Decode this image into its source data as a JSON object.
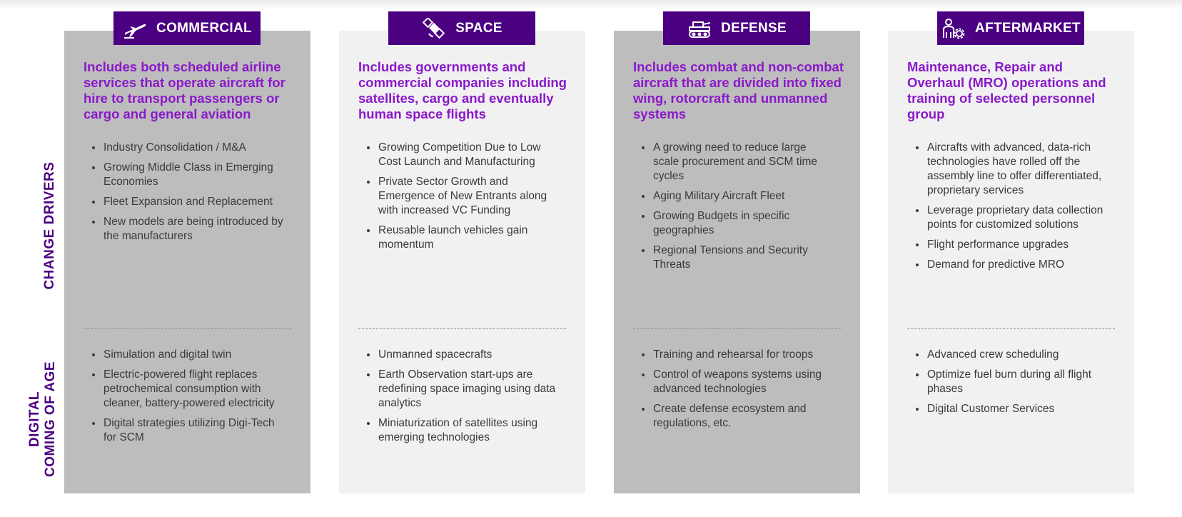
{
  "row_labels": {
    "change_drivers": "CHANGE DRIVERS",
    "digital_line1": "DIGITAL",
    "digital_line2": "COMING OF AGE"
  },
  "colors": {
    "accent": "#4b0082",
    "heading_text": "#8a19c9",
    "panel_dark": "#bdbdbd",
    "panel_light": "#f1f1f2"
  },
  "segments": [
    {
      "title": "COMMERCIAL",
      "icon": "airplane-icon",
      "description": "Includes both scheduled airline services that operate aircraft for hire to transport passengers or cargo and general aviation",
      "change_drivers": [
        "Industry Consolidation / M&A",
        "Growing Middle Class in Emerging Economies",
        "Fleet Expansion and Replacement",
        "New models are being introduced by the manufacturers"
      ],
      "digital": [
        "Simulation and digital twin",
        "Electric-powered flight replaces petrochemical consumption with cleaner, battery-powered electricity",
        "Digital strategies utilizing Digi-Tech for SCM"
      ]
    },
    {
      "title": "SPACE",
      "icon": "satellite-icon",
      "description": "Includes governments and commercial companies including satellites, cargo and eventually human space flights",
      "change_drivers": [
        "Growing Competition Due to Low Cost Launch and Manufacturing",
        "Private Sector Growth and Emergence of New Entrants along with increased VC Funding",
        "Reusable launch vehicles gain momentum"
      ],
      "digital": [
        "Unmanned spacecrafts",
        "Earth Observation start-ups are redefining space imaging using data analytics",
        "Miniaturization of satellites using emerging technologies"
      ]
    },
    {
      "title": "DEFENSE",
      "icon": "tank-icon",
      "description": "Includes combat and non-combat aircraft that are divided into fixed wing, rotorcraft and unmanned systems",
      "change_drivers": [
        "A growing need to reduce large scale procurement and SCM time cycles",
        "Aging Military Aircraft Fleet",
        "Growing Budgets in specific geographies",
        "Regional Tensions and Security Threats"
      ],
      "digital": [
        "Training and rehearsal for troops",
        "Control of weapons systems using advanced technologies",
        "Create defense ecosystem and regulations, etc."
      ]
    },
    {
      "title": "AFTERMARKET",
      "icon": "technician-gear-icon",
      "description": "Maintenance, Repair and Overhaul (MRO) operations and training of selected personnel group",
      "change_drivers": [
        "Aircrafts with advanced, data-rich technologies have rolled off the assembly line to offer differentiated, proprietary services",
        "Leverage proprietary data collection points for customized solutions",
        "Flight performance upgrades",
        "Demand for predictive MRO"
      ],
      "digital": [
        "Advanced crew scheduling",
        "Optimize fuel burn during all flight phases",
        "Digital Customer Services"
      ]
    }
  ]
}
